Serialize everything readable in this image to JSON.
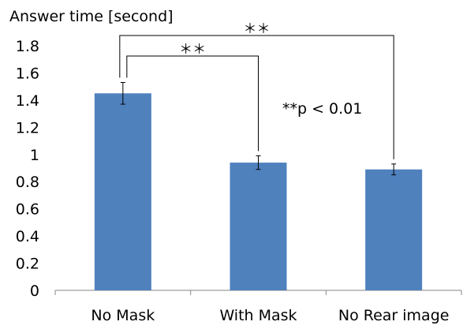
{
  "chart_data": {
    "type": "bar",
    "ylabel": "Answer time [second]",
    "categories": [
      "No Mask",
      "With Mask",
      "No Rear image"
    ],
    "values": [
      1.45,
      0.94,
      0.89
    ],
    "error": [
      0.08,
      0.05,
      0.04
    ],
    "ylim": [
      0,
      1.8
    ],
    "yticks": [
      "0",
      "0.2",
      "0.4",
      "0.6",
      "0.8",
      "1",
      "1.2",
      "1.4",
      "1.6",
      "1.8"
    ],
    "grid": false,
    "bar_color": "#4f81bd",
    "significance": [
      {
        "from": 0,
        "to": 2,
        "label": "＊＊"
      },
      {
        "from": 0,
        "to": 1,
        "label": "＊＊"
      }
    ],
    "annotation": "**p < 0.01"
  }
}
